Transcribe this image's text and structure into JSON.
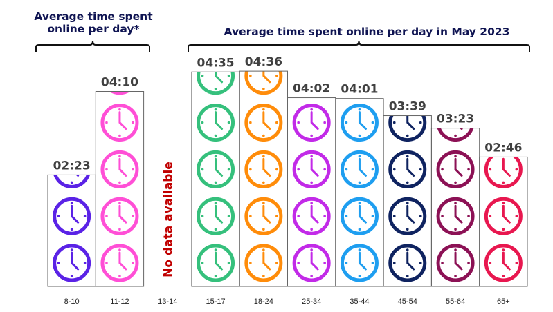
{
  "chart_data": {
    "type": "bar",
    "style": "pictograph",
    "title_left": "Average time spent online per day*",
    "title_right": "Average time spent online per day in May 2023",
    "categories": [
      "8-10",
      "11-12",
      "13-14",
      "15-17",
      "18-24",
      "25-34",
      "35-44",
      "45-54",
      "55-64",
      "65+"
    ],
    "values_minutes": [
      143,
      250,
      null,
      275,
      276,
      242,
      241,
      219,
      203,
      166
    ],
    "value_labels": [
      "02:23",
      "04:10",
      "",
      "04:35",
      "04:36",
      "04:02",
      "04:01",
      "03:39",
      "03:23",
      "02:46"
    ],
    "colors": [
      "#5a22e6",
      "#ff4fd6",
      "",
      "#35c07c",
      "#ff8c0a",
      "#c22ae8",
      "#1e9ef0",
      "#0f2360",
      "#8c1155",
      "#e8174f"
    ],
    "no_data_label": "No data available",
    "icon": "clock-icon",
    "minutes_per_icon": 60,
    "ylabel": "",
    "xlabel": ""
  }
}
